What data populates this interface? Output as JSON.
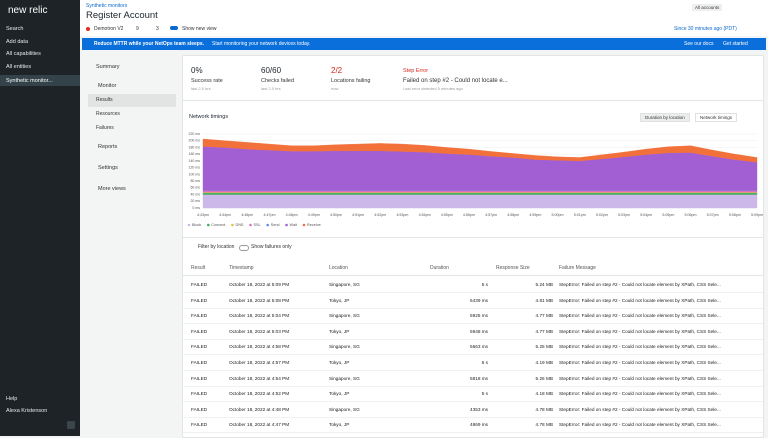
{
  "sidebar": {
    "logo": "new relic",
    "items": [
      "Search",
      "Add data",
      "All capabilities",
      "All entities"
    ],
    "active": "Synthetic monitor...",
    "help": "Help",
    "user": "Alexa Kristenson"
  },
  "header": {
    "breadcrumb": "Synthetic monitors",
    "title": "Register Account",
    "account": "Demotron V2",
    "issues": "9",
    "tags": "3",
    "toggle": "Show new view",
    "accounts": "All accounts",
    "time": "Since 30 minutes ago (PDT)"
  },
  "banner": {
    "text": "Reduce MTTR while your NetOps team sleeps.",
    "sub": "Start monitoring your network devices today.",
    "docs": "See our docs",
    "cta": "Get started"
  },
  "nav": {
    "summary": "Summary",
    "monitor": "Monitor",
    "monitor_items": [
      "Results",
      "Resources",
      "Failures"
    ],
    "others": [
      "Reports",
      "Settings",
      "More views"
    ]
  },
  "stats": [
    {
      "value": "0%",
      "label": "Success rate",
      "note": "last 2.5 hrs"
    },
    {
      "value": "60/60",
      "label": "Checks failed",
      "note": "last 2.5 hrs"
    },
    {
      "value": "2/2",
      "label": "Locations failing",
      "note": "now"
    },
    {
      "value": "Step Error",
      "label": "Failed on step #2 - Could not locate e...",
      "note": "Last error detected 5 minutes ago"
    }
  ],
  "chart_data": {
    "type": "area",
    "stacked": true,
    "title": "Network timings",
    "buttons": [
      "Duration by location",
      "Network timings"
    ],
    "categories": [
      "4:43pm",
      "4:44pm",
      "4:46pm",
      "4:47pm",
      "4:48pm",
      "4:49pm",
      "4:50pm",
      "4:51pm",
      "4:52pm",
      "4:53pm",
      "4:54pm",
      "4:55pm",
      "4:56pm",
      "4:57pm",
      "4:58pm",
      "4:59pm",
      "5:00pm",
      "5:01pm",
      "5:02pm",
      "5:03pm",
      "5:04pm",
      "5:05pm",
      "5:06pm",
      "5:07pm",
      "5:08pm",
      "5:09pm"
    ],
    "series": [
      {
        "name": "Block",
        "color": "#cdb8ea",
        "values": [
          40,
          40,
          40,
          40,
          40,
          40,
          40,
          40,
          40,
          40,
          40,
          40,
          40,
          40,
          40,
          40,
          40,
          40,
          40,
          40,
          40,
          40,
          40,
          40,
          40,
          40
        ]
      },
      {
        "name": "Connect",
        "color": "#3fae5a",
        "values": [
          5,
          5,
          5,
          5,
          5,
          5,
          5,
          5,
          5,
          5,
          5,
          5,
          5,
          5,
          5,
          5,
          5,
          5,
          5,
          5,
          5,
          5,
          5,
          5,
          5,
          5
        ]
      },
      {
        "name": "DNS",
        "color": "#e6c040",
        "values": [
          2,
          2,
          2,
          2,
          2,
          2,
          2,
          2,
          2,
          2,
          2,
          2,
          2,
          2,
          2,
          2,
          2,
          2,
          2,
          2,
          2,
          2,
          2,
          2,
          2,
          2
        ]
      },
      {
        "name": "SSL",
        "color": "#dd6fbf",
        "values": [
          5,
          5,
          5,
          5,
          5,
          5,
          5,
          5,
          5,
          5,
          5,
          5,
          5,
          5,
          5,
          5,
          5,
          5,
          5,
          5,
          5,
          5,
          5,
          5,
          5,
          5
        ]
      },
      {
        "name": "Send",
        "color": "#5b8def",
        "values": [
          1,
          1,
          1,
          1,
          1,
          1,
          1,
          1,
          1,
          1,
          1,
          1,
          1,
          1,
          1,
          1,
          1,
          1,
          1,
          1,
          1,
          1,
          1,
          1,
          1,
          1
        ]
      },
      {
        "name": "Wait",
        "color": "#a15fd3",
        "values": [
          130,
          127,
          122,
          119,
          116,
          116,
          117,
          117,
          117,
          115,
          113,
          109,
          106,
          101,
          97,
          91,
          89,
          87,
          93,
          99,
          106,
          111,
          112,
          101,
          91,
          83
        ]
      },
      {
        "name": "Receive",
        "color": "#f2703a",
        "values": [
          22,
          20,
          20,
          18,
          16,
          16,
          18,
          20,
          22,
          22,
          20,
          18,
          16,
          14,
          12,
          12,
          10,
          10,
          12,
          14,
          16,
          18,
          20,
          18,
          16,
          14
        ]
      }
    ],
    "ylim": [
      0,
      220
    ],
    "yticks": [
      {
        "value": 0,
        "label": "0 ms"
      },
      {
        "value": 20,
        "label": "20 ms"
      },
      {
        "value": 40,
        "label": "40 ms"
      },
      {
        "value": 60,
        "label": "60 ms"
      },
      {
        "value": 80,
        "label": "80 ms"
      },
      {
        "value": 100,
        "label": "100 ms"
      },
      {
        "value": 120,
        "label": "120 ms"
      },
      {
        "value": 140,
        "label": "140 ms"
      },
      {
        "value": 160,
        "label": "160 ms"
      },
      {
        "value": 180,
        "label": "180 ms"
      },
      {
        "value": 200,
        "label": "200 ms"
      },
      {
        "value": 220,
        "label": "220 ms"
      }
    ],
    "grid": true
  },
  "filter": {
    "button": "Filter by location",
    "toggle": "Show failures only"
  },
  "table": {
    "columns": [
      "Result",
      "Timestamp",
      "Location",
      "Duration",
      "Response Size",
      "Failure Message"
    ],
    "rows": [
      [
        "FAILED",
        "October 18, 2022 at 5:09 PM",
        "Singapore, SG",
        "5 s",
        "5.24 MB",
        "StepError: Failed on step #2 - Could not locate element by XPath, CSS Sele..."
      ],
      [
        "FAILED",
        "October 18, 2022 at 5:08 PM",
        "Tokyo, JP",
        "6439 ms",
        "4.81 MB",
        "StepError: Failed on step #2 - Could not locate element by XPath, CSS Sele..."
      ],
      [
        "FAILED",
        "October 18, 2022 at 5:04 PM",
        "Singapore, SG",
        "5925 ms",
        "4.77 MB",
        "StepError: Failed on step #2 - Could not locate element by XPath, CSS Sele..."
      ],
      [
        "FAILED",
        "October 18, 2022 at 5:03 PM",
        "Tokyo, JP",
        "5948 ms",
        "4.77 MB",
        "StepError: Failed on step #2 - Could not locate element by XPath, CSS Sele..."
      ],
      [
        "FAILED",
        "October 18, 2022 at 4:58 PM",
        "Singapore, SG",
        "5563 ms",
        "5.25 MB",
        "StepError: Failed on step #2 - Could not locate element by XPath, CSS Sele..."
      ],
      [
        "FAILED",
        "October 18, 2022 at 4:57 PM",
        "Tokyo, JP",
        "6 s",
        "4.19 MB",
        "StepError: Failed on step #2 - Could not locate element by XPath, CSS Sele..."
      ],
      [
        "FAILED",
        "October 18, 2022 at 4:54 PM",
        "Singapore, SG",
        "5818 ms",
        "5.26 MB",
        "StepError: Failed on step #2 - Could not locate element by XPath, CSS Sele..."
      ],
      [
        "FAILED",
        "October 18, 2022 at 4:52 PM",
        "Tokyo, JP",
        "5 s",
        "4.18 MB",
        "StepError: Failed on step #2 - Could not locate element by XPath, CSS Sele..."
      ],
      [
        "FAILED",
        "October 18, 2022 at 4:48 PM",
        "Singapore, SG",
        "4353 ms",
        "4.78 MB",
        "StepError: Failed on step #2 - Could not locate element by XPath, CSS Sele..."
      ],
      [
        "FAILED",
        "October 18, 2022 at 4:47 PM",
        "Tokyo, JP",
        "4869 ms",
        "4.78 MB",
        "StepError: Failed on step #2 - Could not locate element by XPath, CSS Sele..."
      ]
    ]
  }
}
